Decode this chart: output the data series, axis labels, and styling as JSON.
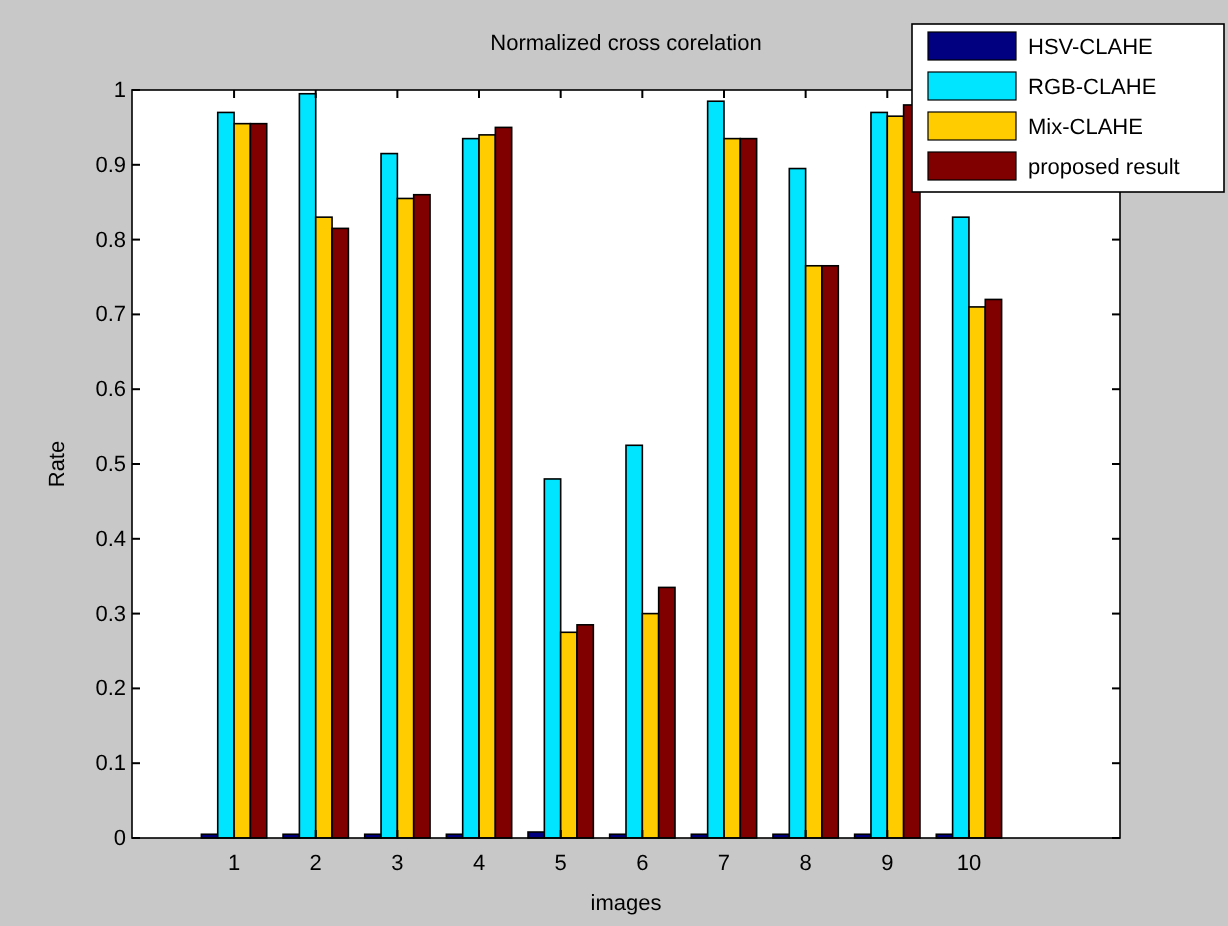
{
  "chart_data": {
    "type": "bar",
    "title": "Normalized cross corelation",
    "xlabel": "images",
    "ylabel": "Rate",
    "categories": [
      "1",
      "2",
      "3",
      "4",
      "5",
      "6",
      "7",
      "8",
      "9",
      "10"
    ],
    "series": [
      {
        "name": "HSV-CLAHE",
        "color": "#000080",
        "values": [
          0.005,
          0.005,
          0.005,
          0.005,
          0.008,
          0.005,
          0.005,
          0.005,
          0.005,
          0.005
        ]
      },
      {
        "name": "RGB-CLAHE",
        "color": "#00e5ff",
        "values": [
          0.97,
          0.995,
          0.915,
          0.935,
          0.48,
          0.525,
          0.985,
          0.895,
          0.97,
          0.83
        ]
      },
      {
        "name": "Mix-CLAHE",
        "color": "#ffcc00",
        "values": [
          0.955,
          0.83,
          0.855,
          0.94,
          0.275,
          0.3,
          0.935,
          0.765,
          0.965,
          0.71
        ]
      },
      {
        "name": "proposed result",
        "color": "#800000",
        "values": [
          0.955,
          0.815,
          0.86,
          0.95,
          0.285,
          0.335,
          0.935,
          0.765,
          0.98,
          0.72
        ]
      }
    ],
    "ylim": [
      0,
      1
    ],
    "yticks": [
      0,
      0.1,
      0.2,
      0.3,
      0.4,
      0.5,
      0.6,
      0.7,
      0.8,
      0.9,
      1
    ],
    "grid": false,
    "legend": "top right"
  }
}
